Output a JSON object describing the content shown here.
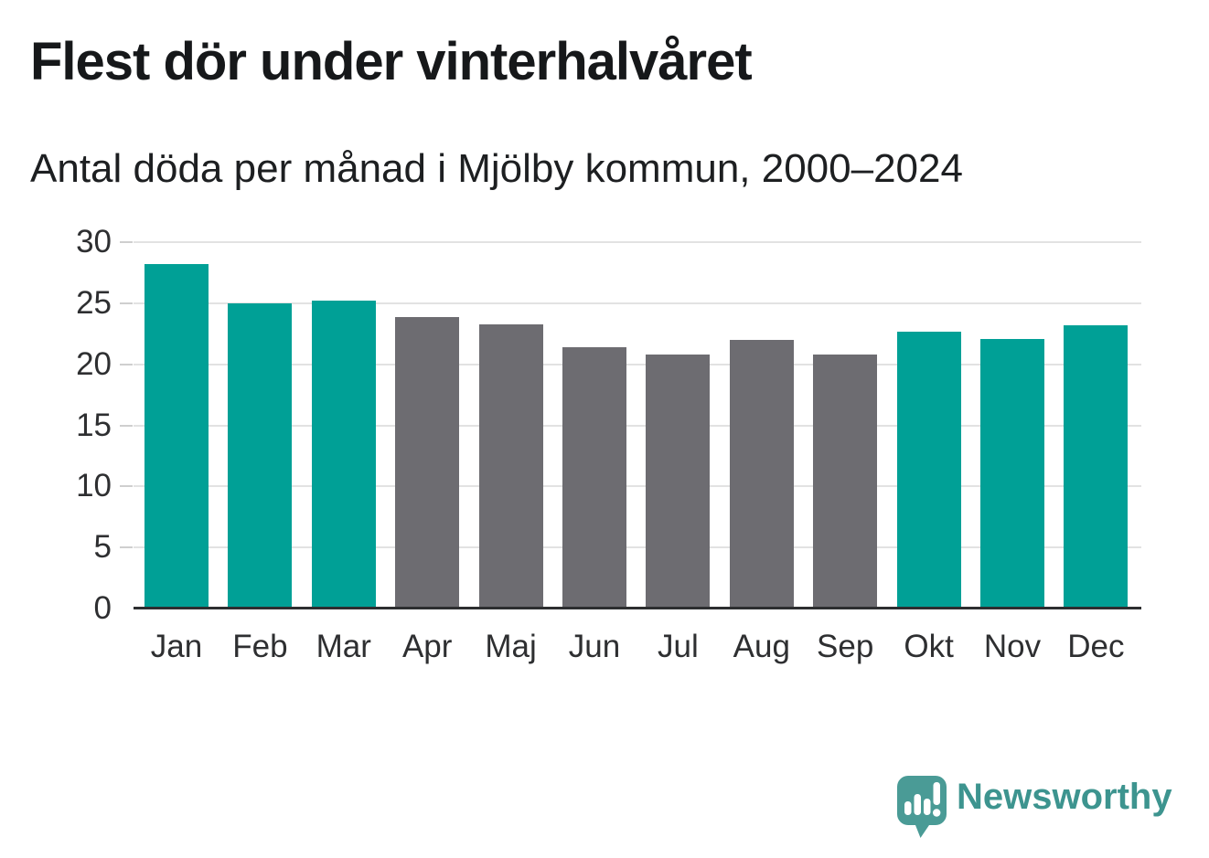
{
  "header": {
    "title": "Flest dör under vinterhalvåret",
    "subtitle": "Antal döda per månad i Mjölby kommun, 2000–2024"
  },
  "chart_data": {
    "type": "bar",
    "title": "Flest dör under vinterhalvåret",
    "subtitle": "Antal döda per månad i Mjölby kommun, 2000–2024",
    "categories": [
      "Jan",
      "Feb",
      "Mar",
      "Apr",
      "Maj",
      "Jun",
      "Jul",
      "Aug",
      "Sep",
      "Okt",
      "Nov",
      "Dec"
    ],
    "values": [
      28.2,
      25.0,
      25.2,
      23.9,
      23.3,
      21.4,
      20.8,
      22.0,
      20.8,
      22.7,
      22.1,
      23.2
    ],
    "highlight": [
      true,
      true,
      true,
      false,
      false,
      false,
      false,
      false,
      false,
      true,
      true,
      true
    ],
    "colors": {
      "highlight": "#00a096",
      "default": "#6d6c71"
    },
    "xlabel": "",
    "ylabel": "",
    "ylim": [
      0,
      30
    ],
    "yticks": [
      0,
      5,
      10,
      15,
      20,
      25,
      30
    ],
    "grid": true,
    "legend": "none"
  },
  "footer": {
    "brand": "Newsworthy",
    "logo_icon": "newsworthy-speech-bubble-barchart-icon",
    "brand_color": "#3d948f",
    "icon_color": "#4a9b96"
  }
}
